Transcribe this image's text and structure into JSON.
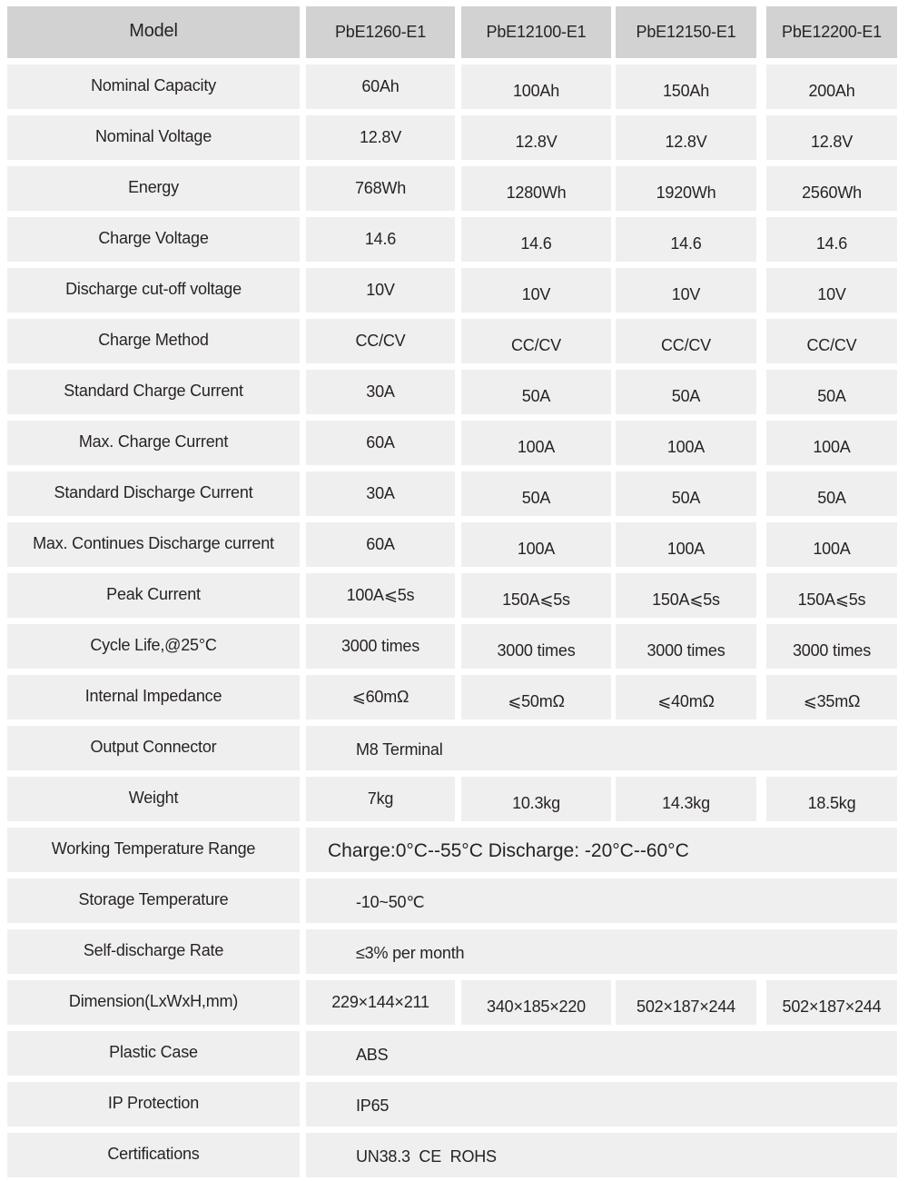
{
  "table": {
    "header": {
      "label": "Model",
      "models": [
        "PbE1260-E1",
        "PbE12100-E1",
        "PbE12150-E1",
        "PbE12200-E1"
      ]
    },
    "rows": [
      {
        "label": "Nominal Capacity",
        "values": [
          "60Ah",
          "100Ah",
          "150Ah",
          "200Ah"
        ]
      },
      {
        "label": "Nominal Voltage",
        "values": [
          "12.8V",
          "12.8V",
          "12.8V",
          "12.8V"
        ]
      },
      {
        "label": "Energy",
        "values": [
          "768Wh",
          "1280Wh",
          "1920Wh",
          "2560Wh"
        ]
      },
      {
        "label": "Charge Voltage",
        "values": [
          "14.6",
          "14.6",
          "14.6",
          "14.6"
        ]
      },
      {
        "label": "Discharge cut-off voltage",
        "values": [
          "10V",
          "10V",
          "10V",
          "10V"
        ]
      },
      {
        "label": "Charge Method",
        "values": [
          "CC/CV",
          "CC/CV",
          "CC/CV",
          "CC/CV"
        ]
      },
      {
        "label": "Standard Charge Current",
        "values": [
          "30A",
          "50A",
          "50A",
          "50A"
        ]
      },
      {
        "label": "Max. Charge Current",
        "values": [
          "60A",
          "100A",
          "100A",
          "100A"
        ]
      },
      {
        "label": "Standard Discharge Current",
        "values": [
          "30A",
          "50A",
          "50A",
          "50A"
        ]
      },
      {
        "label": "Max. Continues Discharge current",
        "values": [
          "60A",
          "100A",
          "100A",
          "100A"
        ]
      },
      {
        "label": "Peak Current",
        "values": [
          "100A⩽5s",
          "150A⩽5s",
          "150A⩽5s",
          "150A⩽5s"
        ]
      },
      {
        "label": "Cycle Life,@25°C",
        "values": [
          "3000 times",
          "3000 times",
          "3000 times",
          "3000 times"
        ]
      },
      {
        "label": "Internal Impedance",
        "values": [
          "⩽60mΩ",
          "⩽50mΩ",
          "⩽40mΩ",
          "⩽35mΩ"
        ]
      },
      {
        "label": "Output Connector",
        "span": "M8 Terminal"
      },
      {
        "label": "Weight",
        "values": [
          "7kg",
          "10.3kg",
          "14.3kg",
          "18.5kg"
        ]
      },
      {
        "label": "Working Temperature Range",
        "span": "Charge:0°C--55°C Discharge: -20°C--60°C",
        "variant": "temp"
      },
      {
        "label": "Storage Temperature",
        "span": "-10~50℃"
      },
      {
        "label": "Self-discharge Rate",
        "span": "≤3% per month"
      },
      {
        "label": "Dimension(LxWxH,mm)",
        "values": [
          "229×144×211",
          "340×185×220",
          "502×187×244",
          "502×187×244"
        ]
      },
      {
        "label": "Plastic Case",
        "span": "ABS"
      },
      {
        "label": "IP Protection",
        "span": "IP65"
      },
      {
        "label": "Certifications",
        "span": "UN38.3  CE  ROHS"
      }
    ],
    "colors": {
      "header_bg": "#d2d2d2",
      "row_bg": "#f0efef",
      "text": "#272324"
    }
  }
}
